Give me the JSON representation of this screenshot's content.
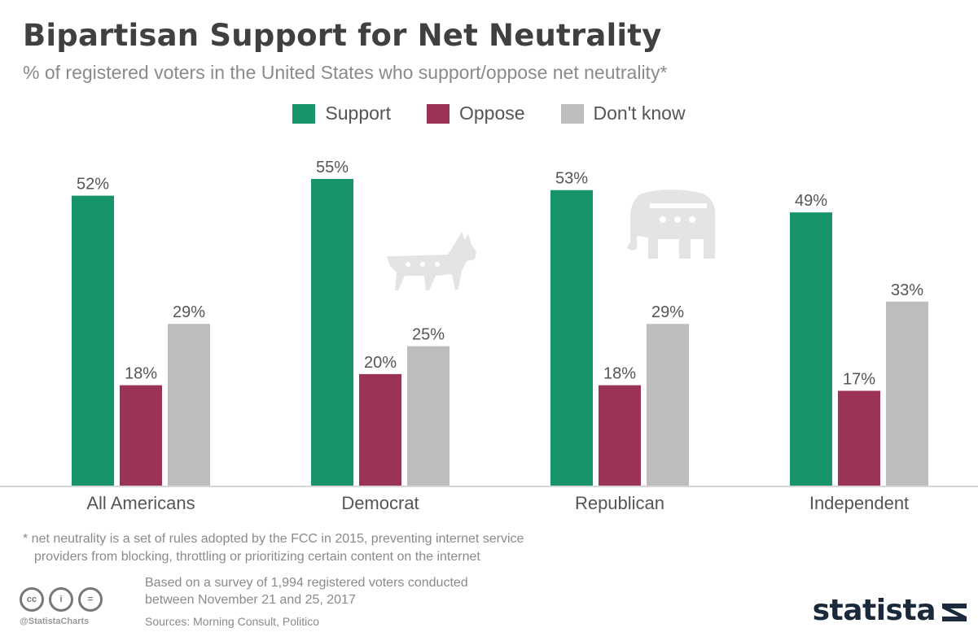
{
  "header": {
    "title": "Bipartisan Support for Net Neutrality",
    "subtitle": "% of registered voters in the United States who support/oppose net neutrality*"
  },
  "colors": {
    "support": "#17946a",
    "oppose": "#9b3355",
    "dont_know": "#bdbdbd",
    "watermark": "#e4e4e4"
  },
  "chart_data": {
    "type": "bar",
    "title": "Bipartisan Support for Net Neutrality",
    "subtitle": "% of registered voters in the United States who support/oppose net neutrality*",
    "categories": [
      "All Americans",
      "Democrat",
      "Republican",
      "Independent"
    ],
    "series": [
      {
        "name": "Support",
        "values": [
          52,
          55,
          53,
          49
        ],
        "labels": [
          "52%",
          "55%",
          "53%",
          "49%"
        ]
      },
      {
        "name": "Oppose",
        "values": [
          18,
          20,
          18,
          17
        ],
        "labels": [
          "18%",
          "20%",
          "18%",
          "17%"
        ]
      },
      {
        "name": "Don't know",
        "values": [
          29,
          25,
          29,
          33
        ],
        "labels": [
          "29%",
          "25%",
          "29%",
          "33%"
        ]
      }
    ],
    "ylim": [
      0,
      55
    ],
    "grid": false,
    "legend": "top-center",
    "unit": "%"
  },
  "watermarks": [
    "donkey-icon",
    "elephant-icon"
  ],
  "footer": {
    "footnote_line1": "* net neutrality is a set of rules adopted by the FCC in 2015, preventing internet service",
    "footnote_line2": "providers from blocking, throttling or prioritizing certain content on the internet",
    "survey_line1": "Based on a survey of 1,994 registered voters conducted",
    "survey_line2": "between November 21 and 25, 2017",
    "sources": "Sources: Morning Consult, Politico",
    "handle": "@StatistaCharts",
    "cc_icons": [
      "cc",
      "i",
      "="
    ],
    "brand": "statista"
  }
}
